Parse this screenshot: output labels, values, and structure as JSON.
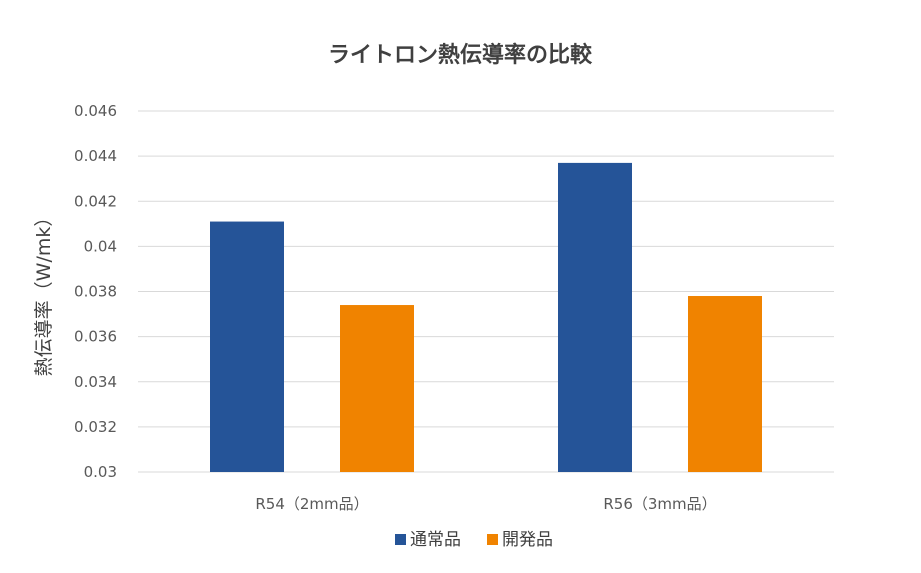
{
  "chart_data": {
    "type": "bar",
    "title": "ライトロン熱伝導率の比較",
    "ylabel": "熱伝導率（W/mk）",
    "xlabel": "",
    "categories": [
      "R54（2mm品）",
      "R56（3mm品）"
    ],
    "series": [
      {
        "name": "通常品",
        "color": "#255498",
        "values": [
          0.0411,
          0.0437
        ]
      },
      {
        "name": "開発品",
        "color": "#f08300",
        "values": [
          0.0374,
          0.0378
        ]
      }
    ],
    "ylim": [
      0.03,
      0.046
    ],
    "yticks": [
      "0.03",
      "0.032",
      "0.034",
      "0.036",
      "0.038",
      "0.04",
      "0.042",
      "0.044",
      "0.046"
    ],
    "grid": true,
    "legend": "bottom"
  }
}
